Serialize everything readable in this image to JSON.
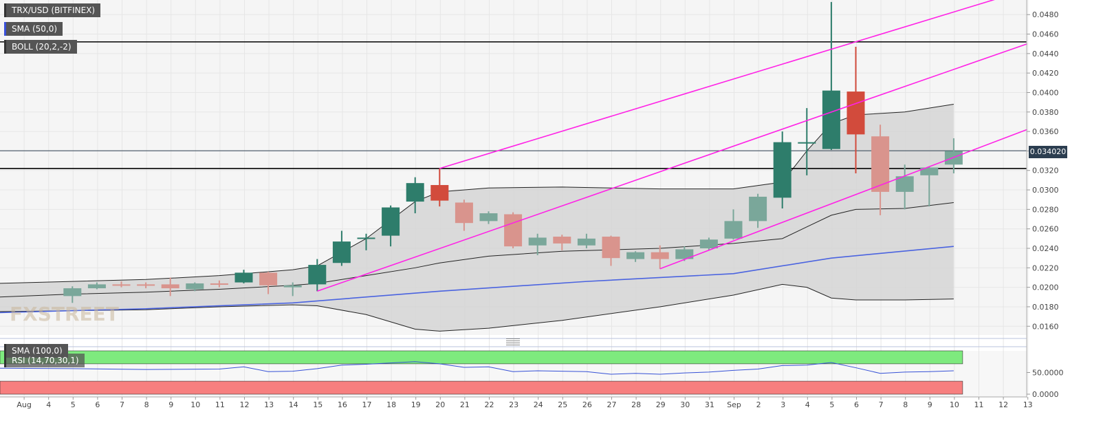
{
  "labels": {
    "symbol": "TRX/USD (BITFINEX)",
    "sma50": "SMA (50,0)",
    "boll": "BOLL (20,2,-2)",
    "sma100": "SMA (100,0)",
    "rsi": "RSI (14,70,30,1)",
    "watermark": "FXSTREET",
    "last_price": "0.034020"
  },
  "colors": {
    "up": "#2e7d6b",
    "up_light": "#7aa79a",
    "down": "#d24b3c",
    "down_light": "#d9948d",
    "trend": "#ff22e6",
    "sma": "#4a63e0",
    "boll_fill": "#d3d3d3",
    "rsi_over": "#7eea7e",
    "rsi_under": "#f77f7f",
    "price_tag": "#2c3e50"
  },
  "chart_data": [
    {
      "type": "candlestick",
      "title": "TRX/USD (BITFINEX)",
      "x_labels": [
        "Aug",
        "4",
        "5",
        "6",
        "7",
        "8",
        "9",
        "10",
        "11",
        "12",
        "13",
        "14",
        "15",
        "16",
        "17",
        "18",
        "19",
        "20",
        "21",
        "22",
        "23",
        "24",
        "25",
        "26",
        "27",
        "28",
        "29",
        "30",
        "31",
        "Sep",
        "2",
        "3",
        "4",
        "5",
        "6",
        "7",
        "8",
        "9",
        "10",
        "11",
        "12",
        "13"
      ],
      "y_ticks": [
        "0.0160",
        "0.0180",
        "0.0200",
        "0.0220",
        "0.0240",
        "0.0260",
        "0.0280",
        "0.0300",
        "0.0320",
        "0.0340",
        "0.0360",
        "0.0380",
        "0.0400",
        "0.0420",
        "0.0440",
        "0.0460",
        "0.0480"
      ],
      "ylim": [
        0.0151,
        0.0495
      ],
      "last_price": 0.03402,
      "horizontal_levels": [
        0.0452,
        0.0322
      ],
      "candles": [
        {
          "x": 3,
          "o": 0.0191,
          "h": 0.0201,
          "l": 0.0184,
          "c": 0.0199,
          "dir": "up",
          "shade": "light"
        },
        {
          "x": 4,
          "o": 0.0199,
          "h": 0.0205,
          "l": 0.0198,
          "c": 0.0203,
          "dir": "up",
          "shade": "light"
        },
        {
          "x": 5,
          "o": 0.0203,
          "h": 0.0206,
          "l": 0.02,
          "c": 0.0202,
          "dir": "down",
          "shade": "light"
        },
        {
          "x": 6,
          "o": 0.0203,
          "h": 0.0205,
          "l": 0.0199,
          "c": 0.0202,
          "dir": "down",
          "shade": "light"
        },
        {
          "x": 7,
          "o": 0.0203,
          "h": 0.021,
          "l": 0.0191,
          "c": 0.0199,
          "dir": "down",
          "shade": "light"
        },
        {
          "x": 8,
          "o": 0.0198,
          "h": 0.0205,
          "l": 0.0196,
          "c": 0.0204,
          "dir": "up",
          "shade": "light"
        },
        {
          "x": 9,
          "o": 0.0204,
          "h": 0.0207,
          "l": 0.02,
          "c": 0.0203,
          "dir": "down",
          "shade": "light"
        },
        {
          "x": 10,
          "o": 0.0205,
          "h": 0.0218,
          "l": 0.0204,
          "c": 0.0215,
          "dir": "up",
          "shade": "dark"
        },
        {
          "x": 11,
          "o": 0.0215,
          "h": 0.0216,
          "l": 0.0193,
          "c": 0.0202,
          "dir": "down",
          "shade": "light"
        },
        {
          "x": 12,
          "o": 0.02,
          "h": 0.0205,
          "l": 0.0191,
          "c": 0.0202,
          "dir": "up",
          "shade": "light"
        },
        {
          "x": 13,
          "o": 0.0203,
          "h": 0.0229,
          "l": 0.0196,
          "c": 0.0223,
          "dir": "up",
          "shade": "dark"
        },
        {
          "x": 14,
          "o": 0.0225,
          "h": 0.0258,
          "l": 0.0222,
          "c": 0.0247,
          "dir": "up",
          "shade": "dark"
        },
        {
          "x": 15,
          "o": 0.025,
          "h": 0.0255,
          "l": 0.0238,
          "c": 0.0251,
          "dir": "up",
          "shade": "dark"
        },
        {
          "x": 16,
          "o": 0.0253,
          "h": 0.0284,
          "l": 0.0242,
          "c": 0.0282,
          "dir": "up",
          "shade": "dark"
        },
        {
          "x": 17,
          "o": 0.0288,
          "h": 0.0313,
          "l": 0.0276,
          "c": 0.0307,
          "dir": "up",
          "shade": "dark"
        },
        {
          "x": 18,
          "o": 0.0305,
          "h": 0.0322,
          "l": 0.0283,
          "c": 0.0289,
          "dir": "down",
          "shade": "dark"
        },
        {
          "x": 19,
          "o": 0.0287,
          "h": 0.029,
          "l": 0.0258,
          "c": 0.0266,
          "dir": "down",
          "shade": "light"
        },
        {
          "x": 20,
          "o": 0.0276,
          "h": 0.0278,
          "l": 0.0265,
          "c": 0.0268,
          "dir": "up",
          "shade": "light"
        },
        {
          "x": 21,
          "o": 0.0275,
          "h": 0.0277,
          "l": 0.024,
          "c": 0.0242,
          "dir": "down",
          "shade": "light"
        },
        {
          "x": 22,
          "o": 0.0243,
          "h": 0.0255,
          "l": 0.0233,
          "c": 0.0251,
          "dir": "up",
          "shade": "light"
        },
        {
          "x": 23,
          "o": 0.0252,
          "h": 0.0254,
          "l": 0.0238,
          "c": 0.0245,
          "dir": "down",
          "shade": "light"
        },
        {
          "x": 24,
          "o": 0.0243,
          "h": 0.0255,
          "l": 0.024,
          "c": 0.025,
          "dir": "up",
          "shade": "light"
        },
        {
          "x": 25,
          "o": 0.0252,
          "h": 0.0253,
          "l": 0.0222,
          "c": 0.023,
          "dir": "down",
          "shade": "light"
        },
        {
          "x": 26,
          "o": 0.0229,
          "h": 0.0237,
          "l": 0.0226,
          "c": 0.0236,
          "dir": "up",
          "shade": "light"
        },
        {
          "x": 27,
          "o": 0.0236,
          "h": 0.0243,
          "l": 0.0219,
          "c": 0.0229,
          "dir": "down",
          "shade": "light"
        },
        {
          "x": 28,
          "o": 0.0229,
          "h": 0.0242,
          "l": 0.0227,
          "c": 0.0239,
          "dir": "up",
          "shade": "light"
        },
        {
          "x": 29,
          "o": 0.024,
          "h": 0.0251,
          "l": 0.0238,
          "c": 0.0249,
          "dir": "up",
          "shade": "light"
        },
        {
          "x": 30,
          "o": 0.025,
          "h": 0.028,
          "l": 0.0249,
          "c": 0.0268,
          "dir": "up",
          "shade": "light"
        },
        {
          "x": 31,
          "o": 0.0268,
          "h": 0.0296,
          "l": 0.0261,
          "c": 0.0293,
          "dir": "up",
          "shade": "light"
        },
        {
          "x": 32,
          "o": 0.0292,
          "h": 0.036,
          "l": 0.0281,
          "c": 0.0349,
          "dir": "up",
          "shade": "dark"
        },
        {
          "x": 33,
          "o": 0.0349,
          "h": 0.0384,
          "l": 0.0315,
          "c": 0.0349,
          "dir": "up",
          "shade": "dark"
        },
        {
          "x": 34,
          "o": 0.0342,
          "h": 0.0493,
          "l": 0.0341,
          "c": 0.0402,
          "dir": "up",
          "shade": "dark"
        },
        {
          "x": 35,
          "o": 0.0401,
          "h": 0.0447,
          "l": 0.0317,
          "c": 0.0357,
          "dir": "down",
          "shade": "dark"
        },
        {
          "x": 36,
          "o": 0.0355,
          "h": 0.0367,
          "l": 0.0274,
          "c": 0.0298,
          "dir": "down",
          "shade": "light"
        },
        {
          "x": 37,
          "o": 0.0298,
          "h": 0.0326,
          "l": 0.028,
          "c": 0.0314,
          "dir": "up",
          "shade": "light"
        },
        {
          "x": 38,
          "o": 0.0315,
          "h": 0.0324,
          "l": 0.0283,
          "c": 0.0323,
          "dir": "up",
          "shade": "light"
        },
        {
          "x": 39,
          "o": 0.0326,
          "h": 0.0353,
          "l": 0.0317,
          "c": 0.034,
          "dir": "up",
          "shade": "light"
        }
      ],
      "bollinger": {
        "x": [
          0,
          3,
          6,
          9,
          12,
          13,
          15,
          17,
          18,
          20,
          23,
          27,
          30,
          32,
          33,
          34,
          35,
          37,
          39
        ],
        "upper": [
          0.0204,
          0.0206,
          0.0208,
          0.0212,
          0.0218,
          0.0222,
          0.025,
          0.0288,
          0.0298,
          0.0302,
          0.0303,
          0.0301,
          0.0301,
          0.0308,
          0.034,
          0.0368,
          0.0377,
          0.038,
          0.0388
        ],
        "middle": [
          0.019,
          0.0193,
          0.0195,
          0.0198,
          0.0202,
          0.0204,
          0.0212,
          0.022,
          0.0225,
          0.0232,
          0.0237,
          0.024,
          0.0245,
          0.025,
          0.0262,
          0.0274,
          0.028,
          0.0281,
          0.0287
        ],
        "lower": [
          0.0175,
          0.0176,
          0.0177,
          0.018,
          0.0182,
          0.0181,
          0.0172,
          0.0157,
          0.0155,
          0.0158,
          0.0166,
          0.018,
          0.0192,
          0.0203,
          0.02,
          0.0189,
          0.0187,
          0.0187,
          0.0188
        ]
      },
      "sma50": {
        "x": [
          0,
          6,
          12,
          18,
          24,
          30,
          34,
          39
        ],
        "y": [
          0.0174,
          0.0178,
          0.0184,
          0.0196,
          0.0206,
          0.0214,
          0.023,
          0.0242
        ]
      },
      "trendlines": [
        {
          "x1": 18,
          "y1": 0.0322,
          "x2": 41,
          "y2": 0.0498
        },
        {
          "x1": 13,
          "y1": 0.0196,
          "x2": 42,
          "y2": 0.045
        },
        {
          "x1": 27,
          "y1": 0.0219,
          "x2": 42,
          "y2": 0.0362
        }
      ]
    },
    {
      "type": "line",
      "title": "RSI (14,70,30,1)",
      "y_ticks": [
        "0.0000",
        "50.0000"
      ],
      "ylim": [
        0,
        100
      ],
      "overbought_band": [
        70,
        100
      ],
      "oversold_band": [
        0,
        30
      ],
      "x": [
        0,
        3,
        6,
        9,
        10,
        11,
        12,
        13,
        14,
        15,
        16,
        17,
        18,
        19,
        20,
        21,
        22,
        23,
        24,
        25,
        26,
        27,
        28,
        29,
        30,
        31,
        32,
        33,
        34,
        35,
        36,
        37,
        38,
        39
      ],
      "y": [
        60,
        59,
        57,
        58,
        63,
        52,
        53,
        59,
        67,
        69,
        72,
        75,
        70,
        62,
        63,
        52,
        54,
        53,
        52,
        46,
        48,
        46,
        49,
        51,
        55,
        58,
        66,
        67,
        73,
        61,
        48,
        51,
        52,
        54
      ]
    }
  ]
}
